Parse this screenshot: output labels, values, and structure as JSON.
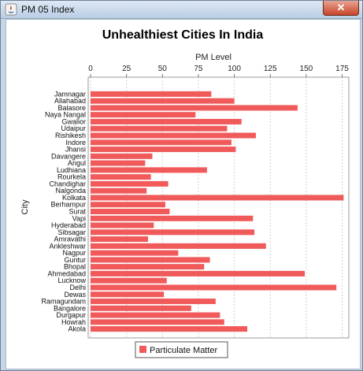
{
  "window": {
    "title": "PM 05 Index",
    "close_glyph": "✕"
  },
  "legend": {
    "label": "Particulate Matter",
    "swatch_color": "#f05a5a"
  },
  "chart_data": {
    "type": "bar",
    "orientation": "horizontal",
    "title": "Unhealthiest Cities In India",
    "xlabel": "PM Level",
    "ylabel": "City",
    "xaxis_position": "top",
    "xlim": [
      0,
      178
    ],
    "xticks": [
      0,
      25,
      50,
      75,
      100,
      125,
      150,
      175
    ],
    "grid": true,
    "legend_position": "bottom",
    "bar_color": "#f05a5a",
    "categories": [
      "Jamnagar",
      "Allahabad",
      "Balasore",
      "Naya Nangal",
      "Gwalior",
      "Udaipur",
      "Rishikesh",
      "Indore",
      "Jhansi",
      "Davangere",
      "Angul",
      "Ludhiana",
      "Rourkela",
      "Chandighar",
      "Nalgonda",
      "Kolkata",
      "Berhampur",
      "Surat",
      "Vapi",
      "Hyderabad",
      "Sibsagar",
      "Amravathi",
      "Ankleshwar",
      "Nagpur",
      "Guntur",
      "Bhopal",
      "Ahmedabad",
      "Lucknow",
      "Delhi",
      "Dewas",
      "Ramagundam",
      "Bangalore",
      "Durgapur",
      "Howrah",
      "Akola"
    ],
    "series": [
      {
        "name": "Particulate Matter",
        "values": [
          84,
          100,
          144,
          73,
          105,
          95,
          115,
          98,
          101,
          43,
          38,
          81,
          42,
          54,
          39,
          176,
          52,
          55,
          113,
          44,
          114,
          40,
          122,
          61,
          83,
          79,
          149,
          53,
          171,
          51,
          87,
          70,
          90,
          93,
          109
        ]
      }
    ]
  }
}
